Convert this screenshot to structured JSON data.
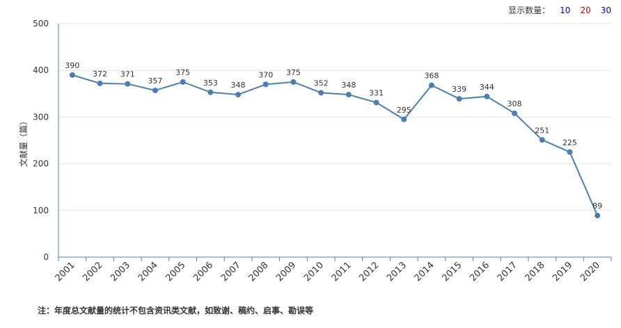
{
  "display_count": {
    "label": "显示数量：",
    "options": [
      {
        "label": "10",
        "color": "#0000cc"
      },
      {
        "label": "20",
        "color": "#cc0000"
      },
      {
        "label": "30",
        "color": "#0000cc"
      }
    ]
  },
  "footnote": "注：年度总文献量的统计不包含资讯类文献，如致谢、稿约、启事、勘误等",
  "chart_data": {
    "type": "line",
    "title": "",
    "xlabel": "",
    "ylabel": "文献量（篇）",
    "ylim": [
      0,
      500
    ],
    "yticks": [
      "0",
      "100",
      "200",
      "300",
      "400",
      "500"
    ],
    "grid": true,
    "line_color": "#4a7fb0",
    "categories": [
      "2001",
      "2002",
      "2003",
      "2004",
      "2005",
      "2006",
      "2007",
      "2008",
      "2009",
      "2010",
      "2011",
      "2012",
      "2013",
      "2014",
      "2015",
      "2016",
      "2017",
      "2018",
      "2019",
      "2020"
    ],
    "values": [
      390,
      372,
      371,
      357,
      375,
      353,
      348,
      370,
      375,
      352,
      348,
      331,
      295,
      368,
      339,
      344,
      308,
      251,
      225,
      89
    ]
  }
}
